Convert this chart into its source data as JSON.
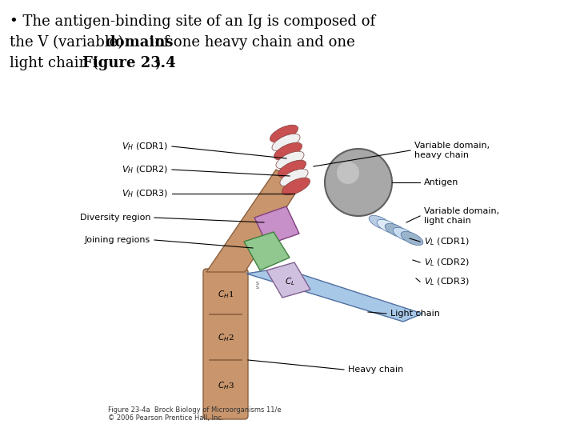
{
  "background_color": "#ffffff",
  "header_text_normal1": "• The antigen-binding site of an Ig is composed of",
  "header_text_normal2": "the V (variable) ",
  "header_text_bold2": "domains",
  "header_text_normal3": " of one heavy chain and one",
  "header_text_normal4": "light chain (",
  "header_text_bold4": "Figure 23.4",
  "header_text_normal5": ").",
  "caption": "Figure 23-4a  Brock Biology of Microorganisms 11/e\n© 2006 Pearson Prentice Hall, Inc.",
  "heavy_chain_color": "#C8956C",
  "light_chain_color": "#A8C8E8",
  "red_stripe_color": "#C85050",
  "white_stripe_color": "#F0F0F0",
  "green_region_color": "#90C890",
  "purple_region_color": "#C890C8",
  "antigen_color": "#A8A8A8",
  "antigen_highlight": "#D8D8D8",
  "text_color": "#000000",
  "font_size_header": 13,
  "font_size_labels": 8,
  "font_size_caption": 6
}
